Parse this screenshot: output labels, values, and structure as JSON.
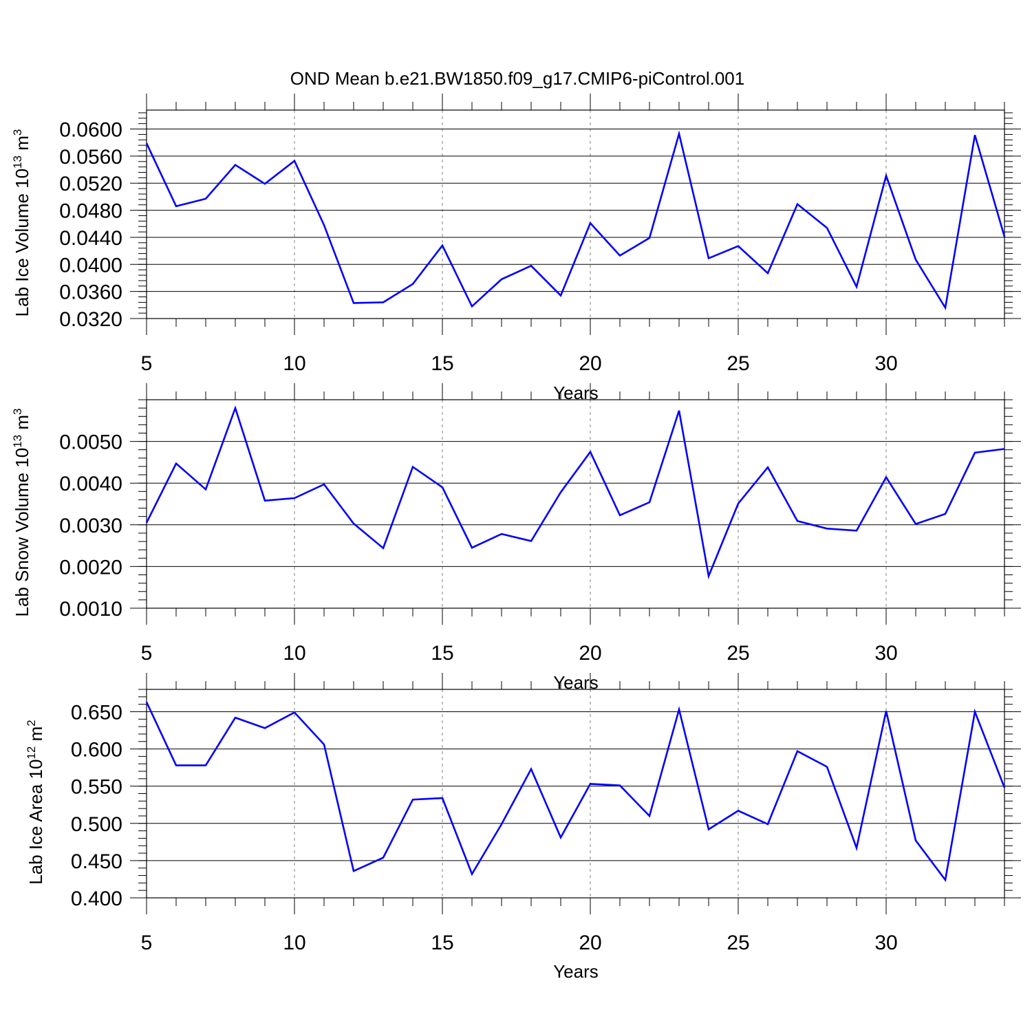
{
  "title": "OND Mean b.e21.BW1850.f09_g17.CMIP6-piControl.001",
  "colors": {
    "line": "#0000ff",
    "axis": "#000000",
    "grid": "#7f7f7f"
  },
  "chart_data": [
    {
      "type": "line",
      "xlabel": "Years",
      "ylabel_parts": {
        "base": "Lab Ice Volume 10",
        "exp1": "13",
        "unit": " m",
        "exp2": "3"
      },
      "xlim": [
        5,
        34
      ],
      "ylim": [
        0.032,
        0.0628
      ],
      "xticks": [
        5,
        10,
        15,
        20,
        25,
        30
      ],
      "xtick_labels": [
        "5",
        "10",
        "15",
        "20",
        "25",
        "30"
      ],
      "yticks": [
        0.032,
        0.036,
        0.04,
        0.044,
        0.048,
        0.052,
        0.056,
        0.06
      ],
      "ytick_labels": [
        "0.0320",
        "0.0360",
        "0.0400",
        "0.0440",
        "0.0480",
        "0.0520",
        "0.0560",
        "0.0600"
      ],
      "yminor_step": 0.0008,
      "grid": "vertical dashed at major x ticks",
      "x": [
        5,
        6,
        7,
        8,
        9,
        10,
        11,
        12,
        13,
        14,
        15,
        16,
        17,
        18,
        19,
        20,
        21,
        22,
        23,
        24,
        25,
        26,
        27,
        28,
        29,
        30,
        31,
        32,
        33,
        34
      ],
      "values": [
        0.0579,
        0.0486,
        0.0497,
        0.0547,
        0.0519,
        0.0553,
        0.0458,
        0.0343,
        0.0344,
        0.0371,
        0.0428,
        0.0338,
        0.0378,
        0.0398,
        0.0354,
        0.0461,
        0.0413,
        0.0439,
        0.0593,
        0.0409,
        0.0427,
        0.0387,
        0.0489,
        0.0454,
        0.0367,
        0.0531,
        0.0407,
        0.0336,
        0.0591,
        0.0441
      ]
    },
    {
      "type": "line",
      "xlabel": "Years",
      "ylabel_parts": {
        "base": "Lab Snow Volume 10",
        "exp1": "13",
        "unit": " m",
        "exp2": "3"
      },
      "xlim": [
        5,
        34
      ],
      "ylim": [
        0.001,
        0.006
      ],
      "xticks": [
        5,
        10,
        15,
        20,
        25,
        30
      ],
      "xtick_labels": [
        "5",
        "10",
        "15",
        "20",
        "25",
        "30"
      ],
      "yticks": [
        0.001,
        0.002,
        0.003,
        0.004,
        0.005
      ],
      "ytick_labels": [
        "0.0010",
        "0.0020",
        "0.0030",
        "0.0040",
        "0.0050"
      ],
      "yminor_step": 0.0002,
      "grid": "vertical dashed at major x ticks",
      "x": [
        5,
        6,
        7,
        8,
        9,
        10,
        11,
        12,
        13,
        14,
        15,
        16,
        17,
        18,
        19,
        20,
        21,
        22,
        23,
        24,
        25,
        26,
        27,
        28,
        29,
        30,
        31,
        32,
        33,
        34
      ],
      "values": [
        0.00305,
        0.00447,
        0.00385,
        0.0058,
        0.00358,
        0.00364,
        0.00397,
        0.00303,
        0.00244,
        0.00439,
        0.0039,
        0.00245,
        0.00278,
        0.00261,
        0.00378,
        0.00475,
        0.00323,
        0.00354,
        0.00574,
        0.00177,
        0.00351,
        0.00438,
        0.00309,
        0.00291,
        0.00286,
        0.00414,
        0.00302,
        0.00326,
        0.00473,
        0.00482
      ]
    },
    {
      "type": "line",
      "xlabel": "Years",
      "ylabel_parts": {
        "base": "Lab Ice Area 10",
        "exp1": "12",
        "unit": " m",
        "exp2": "2"
      },
      "xlim": [
        5,
        34
      ],
      "ylim": [
        0.4,
        0.68
      ],
      "xticks": [
        5,
        10,
        15,
        20,
        25,
        30
      ],
      "xtick_labels": [
        "5",
        "10",
        "15",
        "20",
        "25",
        "30"
      ],
      "yticks": [
        0.4,
        0.45,
        0.5,
        0.55,
        0.6,
        0.65
      ],
      "ytick_labels": [
        "0.400",
        "0.450",
        "0.500",
        "0.550",
        "0.600",
        "0.650"
      ],
      "yminor_step": 0.01,
      "grid": "vertical dashed at major x ticks",
      "x": [
        5,
        6,
        7,
        8,
        9,
        10,
        11,
        12,
        13,
        14,
        15,
        16,
        17,
        18,
        19,
        20,
        21,
        22,
        23,
        24,
        25,
        26,
        27,
        28,
        29,
        30,
        31,
        32,
        33,
        34
      ],
      "values": [
        0.663,
        0.578,
        0.578,
        0.642,
        0.628,
        0.649,
        0.606,
        0.436,
        0.454,
        0.532,
        0.534,
        0.432,
        0.499,
        0.573,
        0.481,
        0.553,
        0.551,
        0.51,
        0.653,
        0.492,
        0.517,
        0.499,
        0.597,
        0.576,
        0.467,
        0.651,
        0.477,
        0.424,
        0.65,
        0.548
      ]
    }
  ]
}
